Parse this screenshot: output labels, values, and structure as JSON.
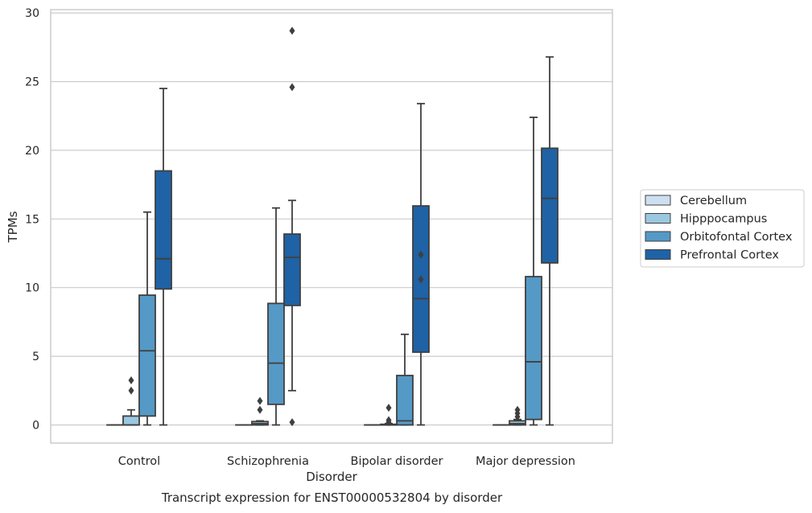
{
  "chart_data": {
    "type": "boxplot",
    "caption": "Transcript expression for ENST00000532804 by disorder",
    "xlabel": "Disorder",
    "ylabel": "TPMs",
    "ylim": [
      -1.4,
      30.2
    ],
    "yticks": [
      0,
      5,
      10,
      15,
      20,
      25,
      30
    ],
    "grid": "horizontal",
    "legend_position": "right",
    "categories": [
      "Control",
      "Schizophrenia",
      "Bipolar disorder",
      "Major depression"
    ],
    "series": [
      {
        "name": "Cerebellum",
        "color": "#cde0f1",
        "boxes": [
          {
            "whislo": 0,
            "q1": 0,
            "med": 0,
            "q3": 0,
            "whishi": 0,
            "fliers": []
          },
          {
            "whislo": 0,
            "q1": 0,
            "med": 0,
            "q3": 0,
            "whishi": 0,
            "fliers": []
          },
          {
            "whislo": 0,
            "q1": 0,
            "med": 0,
            "q3": 0,
            "whishi": 0,
            "fliers": []
          },
          {
            "whislo": 0,
            "q1": 0,
            "med": 0,
            "q3": 0,
            "whishi": 0,
            "fliers": []
          }
        ]
      },
      {
        "name": "Hipppocampus",
        "color": "#9ac8e0",
        "boxes": [
          {
            "whislo": 0,
            "q1": 0,
            "med": 0,
            "q3": 0.65,
            "whishi": 1.1,
            "fliers": [
              2.5,
              3.25
            ]
          },
          {
            "whislo": 0,
            "q1": 0,
            "med": 0.1,
            "q3": 0.25,
            "whishi": 0.3,
            "fliers": [
              1.1,
              1.75
            ]
          },
          {
            "whislo": 0,
            "q1": 0,
            "med": 0,
            "q3": 0.05,
            "whishi": 0.1,
            "fliers": [
              0.2,
              0.35,
              1.25
            ]
          },
          {
            "whislo": 0,
            "q1": 0,
            "med": 0.1,
            "q3": 0.3,
            "whishi": 0.4,
            "fliers": [
              0.6,
              0.85,
              1.1
            ]
          }
        ]
      },
      {
        "name": "Orbitofontal Cortex",
        "color": "#5599c6",
        "boxes": [
          {
            "whislo": 0,
            "q1": 0.65,
            "med": 5.4,
            "q3": 9.45,
            "whishi": 15.5,
            "fliers": []
          },
          {
            "whislo": 0,
            "q1": 1.5,
            "med": 4.5,
            "q3": 8.85,
            "whishi": 15.8,
            "fliers": []
          },
          {
            "whislo": 0,
            "q1": 0,
            "med": 0.3,
            "q3": 3.6,
            "whishi": 6.6,
            "fliers": []
          },
          {
            "whislo": 0,
            "q1": 0.4,
            "med": 4.6,
            "q3": 10.8,
            "whishi": 22.4,
            "fliers": []
          }
        ]
      },
      {
        "name": "Prefrontal Cortex",
        "color": "#1f62a5",
        "boxes": [
          {
            "whislo": 0,
            "q1": 9.9,
            "med": 12.1,
            "q3": 18.5,
            "whishi": 24.5,
            "fliers": []
          },
          {
            "whislo": 2.5,
            "q1": 8.7,
            "med": 12.2,
            "q3": 13.9,
            "whishi": 16.35,
            "fliers": [
              0.2,
              24.6,
              28.7
            ]
          },
          {
            "whislo": 0,
            "q1": 5.3,
            "med": 9.2,
            "q3": 15.95,
            "whishi": 23.4,
            "fliers": [
              10.6,
              12.4
            ]
          },
          {
            "whislo": 0,
            "q1": 11.8,
            "med": 16.5,
            "q3": 20.15,
            "whishi": 26.8,
            "fliers": []
          }
        ]
      }
    ]
  }
}
